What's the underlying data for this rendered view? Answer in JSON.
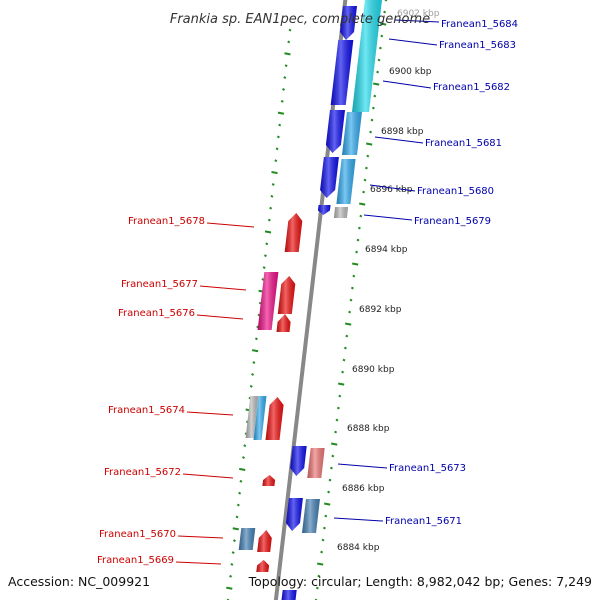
{
  "title": "Frankia sp. EAN1pec, complete genome",
  "footer": {
    "accession": "Accession: NC_009921",
    "topology": "Topology: circular; Length: 8,982,042 bp; Genes: 7,249"
  },
  "colors": {
    "backbone": "#888888",
    "tick_dots": "#228b22",
    "label_right": "#0000aa",
    "label_left": "#cc0000",
    "blue": "#1010ee",
    "cyan": "#22ddee",
    "light_blue": "#33aaee",
    "steel_blue": "#4682b4",
    "gray": "#bbbbbb",
    "red": "#ee1111",
    "pink": "#ee1188",
    "salmon": "#ee7777"
  },
  "ticks": [
    {
      "label": "6902 kbp"
    },
    {
      "label": "6900 kbp"
    },
    {
      "label": "6898 kbp"
    },
    {
      "label": "6896 kbp"
    },
    {
      "label": "6894 kbp"
    },
    {
      "label": "6892 kbp"
    },
    {
      "label": "6890 kbp"
    },
    {
      "label": "6888 kbp"
    },
    {
      "label": "6886 kbp"
    },
    {
      "label": "6884 kbp"
    }
  ],
  "genes_right": [
    {
      "label": "Franean1_5684"
    },
    {
      "label": "Franean1_5683"
    },
    {
      "label": "Franean1_5682"
    },
    {
      "label": "Franean1_5681"
    },
    {
      "label": "Franean1_5680"
    },
    {
      "label": "Franean1_5679"
    },
    {
      "label": "Franean1_5673"
    },
    {
      "label": "Franean1_5671"
    }
  ],
  "genes_left": [
    {
      "label": "Franean1_5678"
    },
    {
      "label": "Franean1_5677"
    },
    {
      "label": "Franean1_5676"
    },
    {
      "label": "Franean1_5674"
    },
    {
      "label": "Franean1_5672"
    },
    {
      "label": "Franean1_5670"
    },
    {
      "label": "Franean1_5669"
    }
  ]
}
